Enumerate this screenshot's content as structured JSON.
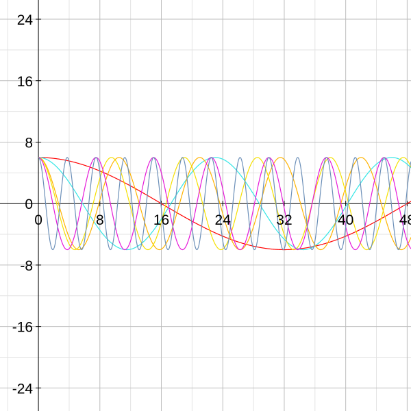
{
  "chart_data": {
    "type": "line",
    "title": "",
    "xlabel": "",
    "ylabel": "",
    "xlim": [
      -5,
      48.5
    ],
    "ylim": [
      -27,
      26.5
    ],
    "grid": true,
    "minor_grid_step": 4,
    "major_grid_step": 8,
    "x_ticks": [
      0,
      8,
      16,
      24,
      32,
      40,
      48
    ],
    "x_tick_labels": [
      "0",
      "8",
      "16",
      "24",
      "32",
      "40",
      "48"
    ],
    "y_ticks": [
      24,
      16,
      8,
      0,
      -8,
      -16,
      -24
    ],
    "y_tick_labels": [
      "24",
      "16",
      "8",
      "0",
      "-8",
      "-16",
      "-24"
    ],
    "colors": {
      "major_grid": "#bdbdbd",
      "minor_grid": "#e3e3e3",
      "axis": "#000000"
    },
    "series": [
      {
        "amplitude": 6,
        "period": 64,
        "color": "#ff0000"
      },
      {
        "amplitude": 6,
        "period": 23,
        "color": "#33e6e6"
      },
      {
        "amplitude": 6,
        "period": 10.5,
        "color": "#ffb300"
      },
      {
        "amplitude": 6,
        "period": 9.5,
        "color": "#f5e000"
      },
      {
        "amplitude": 6,
        "period": 7.5,
        "color": "#e619d9"
      },
      {
        "amplitude": 6,
        "period": 3.75,
        "color": "#6b8fb8"
      }
    ]
  }
}
